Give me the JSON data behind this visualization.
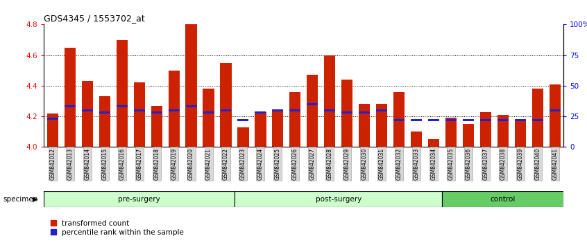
{
  "title": "GDS4345 / 1553702_at",
  "samples": [
    "GSM842012",
    "GSM842013",
    "GSM842014",
    "GSM842015",
    "GSM842016",
    "GSM842017",
    "GSM842018",
    "GSM842019",
    "GSM842020",
    "GSM842021",
    "GSM842022",
    "GSM842023",
    "GSM842024",
    "GSM842025",
    "GSM842026",
    "GSM842027",
    "GSM842028",
    "GSM842029",
    "GSM842030",
    "GSM842031",
    "GSM842032",
    "GSM842033",
    "GSM842034",
    "GSM842035",
    "GSM842036",
    "GSM842037",
    "GSM842038",
    "GSM842039",
    "GSM842040",
    "GSM842041"
  ],
  "bar_values": [
    4.22,
    4.65,
    4.43,
    4.33,
    4.7,
    4.42,
    4.27,
    4.5,
    4.8,
    4.38,
    4.55,
    4.13,
    4.23,
    4.24,
    4.36,
    4.47,
    4.6,
    4.44,
    4.28,
    4.28,
    4.36,
    4.1,
    4.05,
    4.19,
    4.15,
    4.23,
    4.21,
    4.18,
    4.38,
    4.41
  ],
  "percentile_values": [
    23,
    33,
    30,
    28,
    33,
    30,
    28,
    30,
    33,
    28,
    30,
    22,
    28,
    30,
    30,
    35,
    30,
    28,
    28,
    30,
    22,
    22,
    22,
    22,
    22,
    22,
    22,
    22,
    22,
    30
  ],
  "groups": [
    {
      "label": "pre-surgery",
      "start": 0,
      "end": 11,
      "color": "#ccffcc"
    },
    {
      "label": "post-surgery",
      "start": 11,
      "end": 23,
      "color": "#ccffcc"
    },
    {
      "label": "control",
      "start": 23,
      "end": 30,
      "color": "#66cc66"
    }
  ],
  "ylim": [
    4.0,
    4.8
  ],
  "y_ticks_left": [
    4.0,
    4.2,
    4.4,
    4.6,
    4.8
  ],
  "y_ticks_right": [
    0,
    25,
    50,
    75,
    100
  ],
  "grid_lines": [
    4.2,
    4.4,
    4.6
  ],
  "bar_color": "#cc2200",
  "percentile_color": "#2222cc",
  "bg_color": "#ffffff",
  "legend_items": [
    "transformed count",
    "percentile rank within the sample"
  ],
  "specimen_label": "specimen"
}
